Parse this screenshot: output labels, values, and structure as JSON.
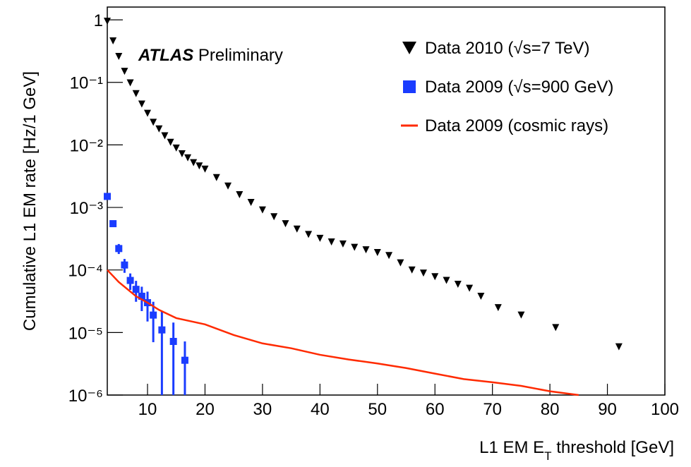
{
  "chart_data": {
    "type": "scatter",
    "experiment": "ATLAS",
    "annotation": "Preliminary",
    "ylabel": "Cumulative L1 EM rate [Hz/1 GeV]",
    "xlabel": [
      "L1 EM E",
      "T",
      " threshold [GeV]"
    ],
    "xlim": [
      3,
      100
    ],
    "ylim": [
      1e-06,
      1.6
    ],
    "log_y": true,
    "xticks": [
      10,
      20,
      30,
      40,
      50,
      60,
      70,
      80,
      90,
      100
    ],
    "yticks": [
      {
        "value": 1e-06,
        "label": "10⁻⁶"
      },
      {
        "value": 1e-05,
        "label": "10⁻⁵"
      },
      {
        "value": 0.0001,
        "label": "10⁻⁴"
      },
      {
        "value": 0.001,
        "label": "10⁻³"
      },
      {
        "value": 0.01,
        "label": "10⁻²"
      },
      {
        "value": 0.1,
        "label": "10⁻¹"
      },
      1
    ],
    "legend": "top-right",
    "series": [
      {
        "name": "Data 2010 (√s=7 TeV)",
        "color": "#000000",
        "marker": "triangle-down",
        "x": [
          3,
          4,
          5,
          6,
          7,
          8,
          9,
          10,
          11,
          12,
          13,
          14,
          15,
          16,
          17,
          18,
          19,
          20,
          22,
          24,
          26,
          28,
          30,
          32,
          34,
          36,
          38,
          40,
          42,
          44,
          46,
          48,
          50,
          52,
          54,
          56,
          58,
          60,
          62,
          64,
          66,
          68,
          71,
          75,
          81,
          92
        ],
        "values": [
          0.95,
          0.46,
          0.26,
          0.15,
          0.098,
          0.066,
          0.045,
          0.032,
          0.023,
          0.018,
          0.014,
          0.011,
          0.0089,
          0.0072,
          0.0062,
          0.0052,
          0.0046,
          0.0041,
          0.003,
          0.0022,
          0.0016,
          0.0012,
          0.00091,
          0.00071,
          0.00055,
          0.00045,
          0.00037,
          0.00032,
          0.00028,
          0.00026,
          0.00023,
          0.00021,
          0.00019,
          0.00017,
          0.00013,
          0.0001,
          8.9e-05,
          7.8e-05,
          6.8e-05,
          5.9e-05,
          5.1e-05,
          3.8e-05,
          2.5e-05,
          1.9e-05,
          1.2e-05,
          5.9e-06
        ]
      },
      {
        "name": "Data 2009 (√s=900 GeV)",
        "color": "#1a3cff",
        "marker": "square",
        "x": [
          3,
          4,
          5,
          6,
          7,
          8,
          9,
          10,
          11,
          12.5,
          14.5,
          16.5
        ],
        "values": [
          0.0015,
          0.00055,
          0.00022,
          0.00012,
          6.8e-05,
          4.9e-05,
          3.8e-05,
          3e-05,
          1.9e-05,
          1.1e-05,
          7.2e-06,
          3.6e-06
        ],
        "errors": [
          0.0001,
          5e-05,
          4e-05,
          3e-05,
          2e-05,
          1.8e-05,
          1.6e-05,
          1.5e-05,
          1.2e-05,
          1.1e-05,
          7.2e-06,
          3.6e-06
        ]
      },
      {
        "name": "Data 2009 (cosmic rays)",
        "color": "#ff2a00",
        "marker": "line",
        "x": [
          3,
          5,
          8,
          10,
          12,
          15,
          20,
          25,
          30,
          35,
          40,
          45,
          50,
          55,
          60,
          65,
          70,
          75,
          80,
          85
        ],
        "values": [
          0.0001,
          6.4e-05,
          3.8e-05,
          3e-05,
          2.3e-05,
          1.7e-05,
          1.35e-05,
          9.1e-06,
          6.7e-06,
          5.6e-06,
          4.4e-06,
          3.7e-06,
          3.2e-06,
          2.7e-06,
          2.2e-06,
          1.8e-06,
          1.6e-06,
          1.4e-06,
          1.15e-06,
          1e-06
        ]
      }
    ]
  }
}
